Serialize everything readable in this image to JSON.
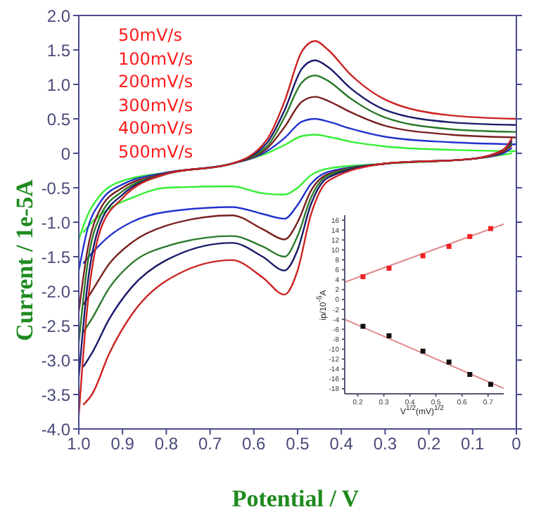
{
  "chart_data": [
    {
      "type": "line",
      "xlabel": "Potential / V",
      "ylabel": "Current / 1e-5A",
      "xlim": [
        1.0,
        0
      ],
      "xticks": [
        {
          "value": 1,
          "label": "1.0"
        },
        0.9,
        0.8,
        0.7,
        0.6,
        0.5,
        0.4,
        0.3,
        0.2,
        0.1,
        0
      ],
      "ylim": [
        -4.0,
        2.0
      ],
      "yticks": [
        {
          "value": 2,
          "label": "2.0"
        },
        1.5,
        {
          "value": 1,
          "label": "1.0"
        },
        0.5,
        0,
        -0.5,
        {
          "value": -1,
          "label": "-1.0"
        },
        -1.5,
        {
          "value": -2,
          "label": "-2.0"
        },
        -2.5,
        {
          "value": -3,
          "label": "-3.0"
        },
        -3.5,
        {
          "value": -4,
          "label": "-4.0"
        }
      ],
      "annotations": [
        "50mV/s",
        "100mV/s",
        "200mV/s",
        "300mV/s",
        "400mV/s",
        "500mV/s"
      ],
      "series": [
        {
          "color": "#33ee33",
          "x": [
            0,
            0.15,
            0.3,
            0.38,
            0.43,
            0.46,
            0.49,
            0.53,
            0.57,
            0.65,
            0.8,
            0.9,
            0.95,
            0.98,
            1.0
          ],
          "values": [
            0.03,
            0.05,
            0.1,
            0.17,
            0.24,
            0.27,
            0.25,
            0.12,
            0.0,
            -0.15,
            -0.28,
            -0.4,
            -0.6,
            -0.9,
            -1.25
          ]
        },
        {
          "color": "#33ee33",
          "x": [
            0.01,
            0.03,
            0.1,
            0.3,
            0.43,
            0.47,
            0.5,
            0.53,
            0.58,
            0.65,
            0.8,
            0.88,
            0.93,
            0.97,
            0.99
          ],
          "values": [
            0.0,
            -0.02,
            -0.08,
            -0.15,
            -0.22,
            -0.32,
            -0.5,
            -0.6,
            -0.58,
            -0.48,
            -0.5,
            -0.65,
            -0.8,
            -1.0,
            -1.15
          ]
        },
        {
          "color": "#2233cc",
          "x": [
            0,
            0.15,
            0.3,
            0.38,
            0.43,
            0.46,
            0.49,
            0.53,
            0.57,
            0.65,
            0.8,
            0.9,
            0.95,
            0.98,
            1.0
          ],
          "values": [
            0.13,
            0.16,
            0.24,
            0.36,
            0.46,
            0.5,
            0.46,
            0.22,
            0.03,
            -0.15,
            -0.28,
            -0.45,
            -0.7,
            -1.1,
            -1.7
          ]
        },
        {
          "color": "#2233cc",
          "x": [
            0.01,
            0.03,
            0.1,
            0.3,
            0.43,
            0.47,
            0.5,
            0.53,
            0.58,
            0.65,
            0.8,
            0.88,
            0.93,
            0.97,
            0.99
          ],
          "values": [
            0.08,
            0,
            -0.08,
            -0.15,
            -0.27,
            -0.45,
            -0.75,
            -0.95,
            -0.88,
            -0.78,
            -0.85,
            -1.0,
            -1.2,
            -1.45,
            -1.6
          ]
        },
        {
          "color": "#7a2020",
          "x": [
            0,
            0.15,
            0.3,
            0.38,
            0.43,
            0.46,
            0.49,
            0.53,
            0.57,
            0.65,
            0.8,
            0.9,
            0.95,
            0.98,
            1.0
          ],
          "values": [
            0.23,
            0.27,
            0.4,
            0.6,
            0.76,
            0.82,
            0.75,
            0.38,
            0.07,
            -0.15,
            -0.29,
            -0.5,
            -0.8,
            -1.4,
            -2.3
          ]
        },
        {
          "color": "#7a2020",
          "x": [
            0.01,
            0.03,
            0.1,
            0.3,
            0.43,
            0.47,
            0.5,
            0.53,
            0.58,
            0.65,
            0.8,
            0.88,
            0.93,
            0.97,
            0.99
          ],
          "values": [
            0.12,
            0.02,
            -0.08,
            -0.15,
            -0.3,
            -0.55,
            -1.0,
            -1.25,
            -1.1,
            -0.9,
            -1.05,
            -1.3,
            -1.6,
            -2.0,
            -2.2
          ]
        },
        {
          "color": "#2a7a2a",
          "x": [
            0,
            0.15,
            0.3,
            0.38,
            0.43,
            0.46,
            0.49,
            0.53,
            0.57,
            0.65,
            0.8,
            0.9,
            0.95,
            0.98,
            1.0
          ],
          "values": [
            0.31,
            0.35,
            0.52,
            0.8,
            1.05,
            1.13,
            1.03,
            0.52,
            0.1,
            -0.15,
            -0.3,
            -0.55,
            -0.9,
            -1.6,
            -2.75
          ]
        },
        {
          "color": "#2a7a2a",
          "x": [
            0.01,
            0.03,
            0.1,
            0.3,
            0.43,
            0.47,
            0.5,
            0.53,
            0.58,
            0.65,
            0.8,
            0.88,
            0.93,
            0.97,
            0.99
          ],
          "values": [
            0.15,
            0.05,
            -0.08,
            -0.15,
            -0.32,
            -0.65,
            -1.2,
            -1.5,
            -1.35,
            -1.2,
            -1.35,
            -1.6,
            -1.95,
            -2.4,
            -2.6
          ]
        },
        {
          "color": "#1a1a6a",
          "x": [
            0,
            0.15,
            0.3,
            0.38,
            0.43,
            0.46,
            0.49,
            0.53,
            0.57,
            0.65,
            0.8,
            0.9,
            0.95,
            0.98,
            1.0
          ],
          "values": [
            0.41,
            0.45,
            0.63,
            0.95,
            1.25,
            1.35,
            1.23,
            0.62,
            0.15,
            -0.15,
            -0.3,
            -0.6,
            -1.0,
            -1.9,
            -3.25
          ]
        },
        {
          "color": "#1a1a6a",
          "x": [
            0.01,
            0.03,
            0.1,
            0.3,
            0.43,
            0.47,
            0.5,
            0.53,
            0.58,
            0.65,
            0.8,
            0.88,
            0.93,
            0.97,
            0.99
          ],
          "values": [
            0.18,
            0.05,
            -0.08,
            -0.15,
            -0.35,
            -0.75,
            -1.4,
            -1.7,
            -1.5,
            -1.3,
            -1.55,
            -1.95,
            -2.4,
            -2.9,
            -3.1
          ]
        },
        {
          "color": "#cc2222",
          "x": [
            0,
            0.15,
            0.3,
            0.38,
            0.43,
            0.46,
            0.49,
            0.53,
            0.57,
            0.65,
            0.8,
            0.9,
            0.95,
            0.98,
            1.0
          ],
          "values": [
            0.5,
            0.55,
            0.78,
            1.15,
            1.5,
            1.63,
            1.48,
            0.75,
            0.2,
            -0.15,
            -0.3,
            -0.65,
            -1.1,
            -2.2,
            -3.8
          ]
        },
        {
          "color": "#cc2222",
          "x": [
            0.01,
            0.03,
            0.1,
            0.3,
            0.43,
            0.47,
            0.5,
            0.53,
            0.58,
            0.65,
            0.8,
            0.88,
            0.93,
            0.97,
            0.99
          ],
          "values": [
            0.22,
            0.05,
            -0.08,
            -0.15,
            -0.4,
            -0.9,
            -1.7,
            -2.05,
            -1.8,
            -1.55,
            -1.85,
            -2.35,
            -2.9,
            -3.5,
            -3.65
          ]
        }
      ]
    },
    {
      "type": "scatter",
      "xlabel": "V$^{1/2}$(mV)$^{1/2}$",
      "ylabel": "ip/10$^{-5}$A",
      "marker": "square",
      "xlim": [
        0.15,
        0.76
      ],
      "xticks": [
        0.2,
        0.3,
        0.4,
        0.5,
        0.6,
        0.7
      ],
      "ylim": [
        -19,
        17
      ],
      "yticks": [
        16,
        14,
        12,
        10,
        8,
        6,
        4,
        2,
        0,
        -2,
        -4,
        -6,
        -8,
        -10,
        -12,
        -14,
        -16,
        -18
      ],
      "series": [
        {
          "type": "line",
          "marker": "none",
          "color": "#e08888",
          "x": [
            0.15,
            0.76
          ],
          "values": [
            3.5,
            15.2
          ]
        },
        {
          "type": "line",
          "marker": "none",
          "color": "#e08888",
          "x": [
            0.15,
            0.76
          ],
          "values": [
            -4.0,
            -17.9
          ]
        },
        {
          "color": "#ee2222",
          "x": [
            0.22,
            0.32,
            0.45,
            0.55,
            0.63,
            0.71
          ],
          "values": [
            4.6,
            6.3,
            8.8,
            10.7,
            12.7,
            14.3
          ]
        },
        {
          "color": "#111111",
          "x": [
            0.22,
            0.32,
            0.45,
            0.55,
            0.63,
            0.71
          ],
          "values": [
            -5.4,
            -7.3,
            -10.4,
            -12.6,
            -15.1,
            -17.1
          ]
        }
      ]
    }
  ]
}
